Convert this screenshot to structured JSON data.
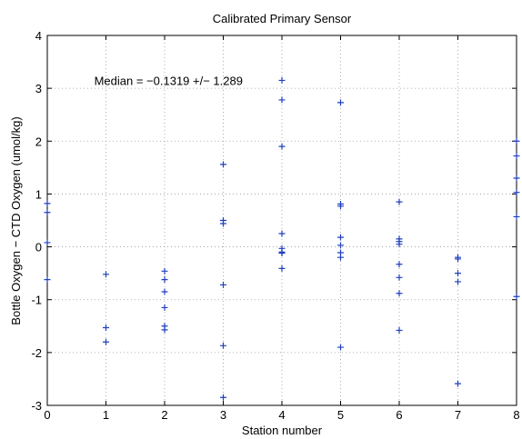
{
  "chart_data": {
    "type": "scatter",
    "title": "Calibrated Primary Sensor",
    "xlabel": "Station number",
    "ylabel": "Bottle Oxygen − CTD Oxygen (umol/kg)",
    "xlim": [
      0,
      8
    ],
    "ylim": [
      -3,
      4
    ],
    "xticks": [
      0,
      1,
      2,
      3,
      4,
      5,
      6,
      7,
      8
    ],
    "yticks": [
      -3,
      -2,
      -1,
      0,
      1,
      2,
      3,
      4
    ],
    "grid": true,
    "marker": "+",
    "color": "#1f3fbf",
    "annotation": {
      "text": "Median = −0.1319 +/− 1.289",
      "x": 0.8,
      "y": 3.15
    },
    "points": [
      {
        "x": 0,
        "y": 0.82
      },
      {
        "x": 0,
        "y": 0.65
      },
      {
        "x": 0,
        "y": 0.08
      },
      {
        "x": 0,
        "y": -0.62
      },
      {
        "x": 1,
        "y": -0.52
      },
      {
        "x": 1,
        "y": -1.53
      },
      {
        "x": 1,
        "y": -1.8
      },
      {
        "x": 2,
        "y": -0.46
      },
      {
        "x": 2,
        "y": -0.62
      },
      {
        "x": 2,
        "y": -0.85
      },
      {
        "x": 2,
        "y": -1.15
      },
      {
        "x": 2,
        "y": -1.5
      },
      {
        "x": 2,
        "y": -1.57
      },
      {
        "x": 3,
        "y": 1.56
      },
      {
        "x": 3,
        "y": 0.5
      },
      {
        "x": 3,
        "y": 0.44
      },
      {
        "x": 3,
        "y": -0.72
      },
      {
        "x": 3,
        "y": -1.87
      },
      {
        "x": 3,
        "y": -2.85
      },
      {
        "x": 4,
        "y": 3.15
      },
      {
        "x": 4,
        "y": 2.78
      },
      {
        "x": 4,
        "y": 1.9
      },
      {
        "x": 4,
        "y": 0.25
      },
      {
        "x": 4,
        "y": -0.03
      },
      {
        "x": 4,
        "y": -0.1
      },
      {
        "x": 4,
        "y": -0.12
      },
      {
        "x": 4,
        "y": -0.41
      },
      {
        "x": 5,
        "y": 2.73
      },
      {
        "x": 5,
        "y": 0.81
      },
      {
        "x": 5,
        "y": 0.77
      },
      {
        "x": 5,
        "y": 0.18
      },
      {
        "x": 5,
        "y": 0.03
      },
      {
        "x": 5,
        "y": -0.11
      },
      {
        "x": 5,
        "y": -0.2
      },
      {
        "x": 5,
        "y": -1.9
      },
      {
        "x": 6,
        "y": 0.85
      },
      {
        "x": 6,
        "y": 0.15
      },
      {
        "x": 6,
        "y": 0.1
      },
      {
        "x": 6,
        "y": 0.05
      },
      {
        "x": 6,
        "y": -0.33
      },
      {
        "x": 6,
        "y": -0.58
      },
      {
        "x": 6,
        "y": -0.88
      },
      {
        "x": 6,
        "y": -1.58
      },
      {
        "x": 7,
        "y": -0.2
      },
      {
        "x": 7,
        "y": -0.23
      },
      {
        "x": 7,
        "y": -0.5
      },
      {
        "x": 7,
        "y": -0.66
      },
      {
        "x": 7,
        "y": -2.59
      },
      {
        "x": 8,
        "y": 2.0
      },
      {
        "x": 8,
        "y": 1.72
      },
      {
        "x": 8,
        "y": 1.3
      },
      {
        "x": 8,
        "y": 1.03
      },
      {
        "x": 8,
        "y": 0.57
      },
      {
        "x": 8,
        "y": -0.94
      }
    ]
  }
}
